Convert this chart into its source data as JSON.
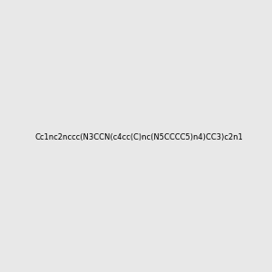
{
  "smiles": "Cc1nc2nccc(N3CCN(c4cc(C)nc(N5CCCC5)n4)CC3)c2n1",
  "image_size": 300,
  "background_color": "#e8e8e8",
  "bond_color": "#000000",
  "atom_color_N": "#0000ff",
  "atom_color_C": "#000000"
}
